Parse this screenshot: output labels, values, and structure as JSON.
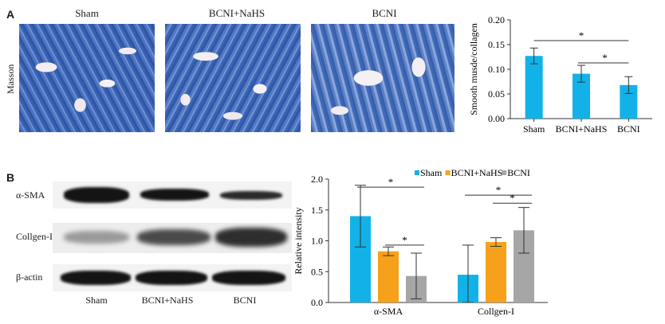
{
  "panel_a": {
    "letter": "A",
    "stain_label": "Masson",
    "images": [
      {
        "label": "Sham"
      },
      {
        "label": "BCNI+NaHS"
      },
      {
        "label": "BCNI"
      }
    ]
  },
  "panel_b": {
    "letter": "B",
    "blot_rows": [
      "α-SMA",
      "Collgen-I",
      "β-actin"
    ],
    "lanes": [
      "Sham",
      "BCNI+NaHS",
      "BCNI"
    ]
  },
  "colors": {
    "blue": "#12b2e8",
    "orange": "#f7a11a",
    "gray": "#a6a6a6"
  },
  "chart_data": [
    {
      "type": "bar",
      "title": "",
      "xlabel": "",
      "ylabel": "Smooth musde/collagen",
      "ylim": [
        0,
        0.2
      ],
      "yticks": [
        "0.00",
        "0.05",
        "0.10",
        "0.15",
        "0.20"
      ],
      "categories": [
        "Sham",
        "BCNI+NaHS",
        "BCNI"
      ],
      "values": [
        0.127,
        0.091,
        0.068
      ],
      "errors": [
        0.016,
        0.017,
        0.017
      ],
      "significance": [
        "*",
        "*"
      ],
      "legend": "none"
    },
    {
      "type": "bar",
      "title": "",
      "xlabel": "",
      "ylabel": "Relative intensity",
      "ylim": [
        0,
        2.0
      ],
      "yticks": [
        "0.0",
        "0.5",
        "1.0",
        "1.5",
        "2.0"
      ],
      "categories": [
        "α-SMA",
        "Collgen-I"
      ],
      "series": [
        {
          "name": "Sham",
          "values": [
            1.4,
            0.45
          ],
          "errors": [
            0.5,
            0.48
          ]
        },
        {
          "name": "BCNI+NaHS",
          "values": [
            0.83,
            0.98
          ],
          "errors": [
            0.07,
            0.07
          ]
        },
        {
          "name": "BCNI",
          "values": [
            0.43,
            1.17
          ],
          "errors": [
            0.37,
            0.37
          ]
        }
      ],
      "significance": [
        "*",
        "*",
        "*",
        "*"
      ],
      "legend": "top-right"
    }
  ]
}
